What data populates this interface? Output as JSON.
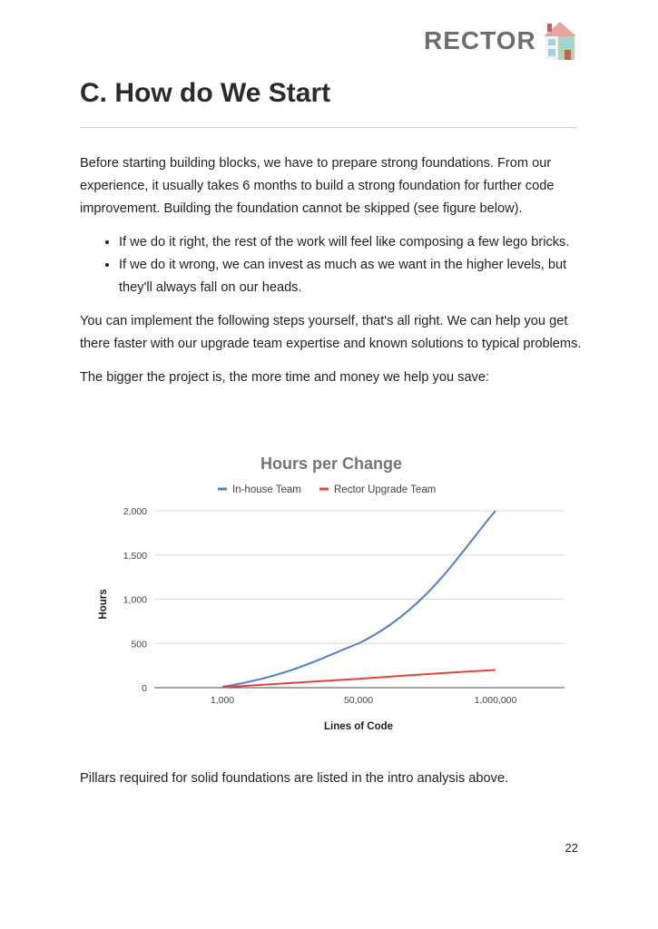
{
  "header": {
    "logo_text": "RECTOR",
    "logo_icon": "house-icon"
  },
  "title": "C. How do We Start",
  "paragraphs": {
    "p1": "Before starting building blocks, we have to prepare strong foundations. From our experience, it usually takes 6 months to build a strong foundation for further code improvement. Building the foundation cannot be skipped (see figure below).",
    "bullets": [
      "If we do it right, the rest of the work will feel like composing a few lego bricks.",
      "If we do it wrong, we can invest as much as we want in the higher levels, but they'll always fall on our heads."
    ],
    "p2": "You can implement the following steps yourself, that's all right. We can help you get there faster with our upgrade team expertise and known solutions to typical problems.",
    "p3": "The bigger the project is, the more time and money we help you save:",
    "p4": "Pillars required for solid foundations are listed in the intro analysis above."
  },
  "chart_data": {
    "type": "line",
    "title": "Hours per Change",
    "xlabel": "Lines of Code",
    "ylabel": "Hours",
    "x_ticks": [
      "1,000",
      "50,000",
      "1,000,000"
    ],
    "y_ticks": [
      "0",
      "500",
      "1,000",
      "1,500",
      "2,000"
    ],
    "ylim": [
      0,
      2000
    ],
    "grid": true,
    "legend_position": "top",
    "x": [
      "1,000",
      "50,000",
      "1,000,000"
    ],
    "series": [
      {
        "name": "In-house Team",
        "color": "#4f7fc6",
        "values": [
          10,
          500,
          2000
        ]
      },
      {
        "name": "Rector Upgrade Team",
        "color": "#e0453a",
        "values": [
          5,
          100,
          200
        ]
      }
    ]
  },
  "page_number": "22"
}
